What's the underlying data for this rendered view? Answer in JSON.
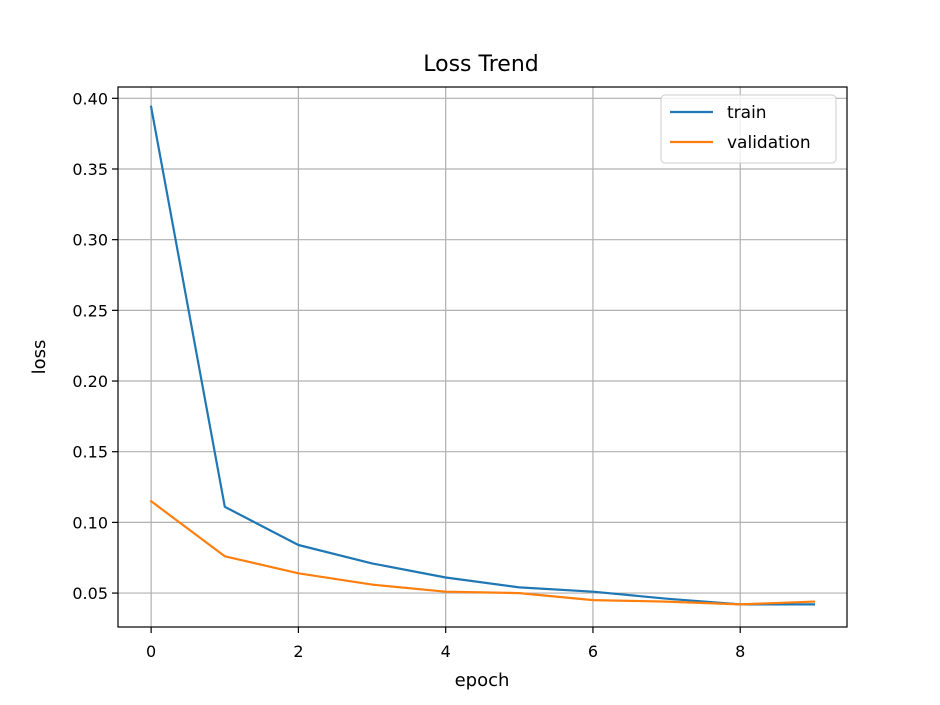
{
  "chart_data": {
    "type": "line",
    "title": "Loss Trend",
    "xlabel": "epoch",
    "ylabel": "loss",
    "x": [
      0,
      1,
      2,
      3,
      4,
      5,
      6,
      7,
      8,
      9
    ],
    "xlim": [
      -0.45,
      9.45
    ],
    "ylim": [
      0.026,
      0.408
    ],
    "xticks": [
      "0",
      "2",
      "4",
      "6",
      "8"
    ],
    "yticks": [
      "0.05",
      "0.10",
      "0.15",
      "0.20",
      "0.25",
      "0.30",
      "0.35",
      "0.40"
    ],
    "grid": true,
    "legend_position": "top-right",
    "series": [
      {
        "name": "train",
        "color": "#1f77b4",
        "values": [
          0.394,
          0.111,
          0.084,
          0.071,
          0.061,
          0.054,
          0.051,
          0.046,
          0.042,
          0.042
        ]
      },
      {
        "name": "validation",
        "color": "#ff7f0e",
        "values": [
          0.115,
          0.076,
          0.064,
          0.056,
          0.051,
          0.05,
          0.045,
          0.044,
          0.042,
          0.044
        ]
      }
    ]
  }
}
